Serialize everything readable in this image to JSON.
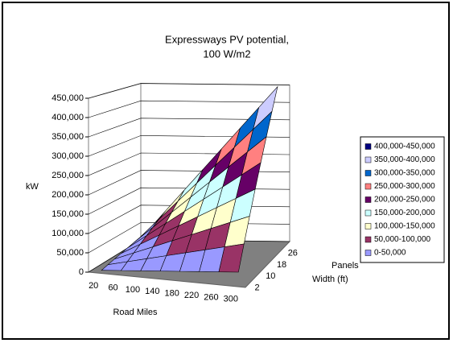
{
  "chart_data": {
    "type": "surface",
    "title": [
      "Expressways PV potential,",
      "100 W/m2"
    ],
    "y_label": "kW",
    "x_label": "Road Miles",
    "depth_label": [
      "Panels",
      "Width (ft)"
    ],
    "categories": [
      "20",
      "60",
      "100",
      "140",
      "180",
      "220",
      "260",
      "300"
    ],
    "depth_categories": [
      "2",
      null,
      "10",
      null,
      "18",
      null,
      "26",
      null
    ],
    "values": [
      [
        2000,
        6000,
        10000,
        14000,
        18000,
        22000,
        26000,
        30000
      ],
      [
        6000,
        18000,
        30000,
        42000,
        54000,
        66000,
        78000,
        90000
      ],
      [
        10000,
        30000,
        50000,
        70000,
        90000,
        110000,
        130000,
        150000
      ],
      [
        14000,
        42000,
        70000,
        98000,
        126000,
        154000,
        182000,
        210000
      ],
      [
        18000,
        54000,
        90000,
        126000,
        162000,
        198000,
        234000,
        270000
      ],
      [
        22000,
        66000,
        110000,
        154000,
        198000,
        242000,
        286000,
        330000
      ],
      [
        26000,
        78000,
        130000,
        182000,
        234000,
        286000,
        338000,
        390000
      ],
      [
        30000,
        90000,
        150000,
        210000,
        270000,
        330000,
        390000,
        450000
      ]
    ],
    "ylim": [
      0,
      450000
    ],
    "yticks": [
      {
        "value": 0,
        "label": "0"
      },
      {
        "value": 50000,
        "label": "50,000"
      },
      {
        "value": 100000,
        "label": "100,000"
      },
      {
        "value": 150000,
        "label": "150,000"
      },
      {
        "value": 200000,
        "label": "200,000"
      },
      {
        "value": 250000,
        "label": "250,000"
      },
      {
        "value": 300000,
        "label": "300,000"
      },
      {
        "value": 350000,
        "label": "350,000"
      },
      {
        "value": 400000,
        "label": "400,000"
      },
      {
        "value": 450000,
        "label": "450,000"
      }
    ],
    "grid": true,
    "legend": "right",
    "bands": [
      {
        "name": "0-50,000",
        "color": "#9999ff",
        "from": 0,
        "to": 50000
      },
      {
        "name": "50,000-100,000",
        "color": "#993366",
        "from": 50000,
        "to": 100000
      },
      {
        "name": "100,000-150,000",
        "color": "#ffffcc",
        "from": 100000,
        "to": 150000
      },
      {
        "name": "150,000-200,000",
        "color": "#ccffff",
        "from": 150000,
        "to": 200000
      },
      {
        "name": "200,000-250,000",
        "color": "#660066",
        "from": 200000,
        "to": 250000
      },
      {
        "name": "250,000-300,000",
        "color": "#ff8080",
        "from": 250000,
        "to": 300000
      },
      {
        "name": "300,000-350,000",
        "color": "#0066cc",
        "from": 300000,
        "to": 350000
      },
      {
        "name": "350,000-400,000",
        "color": "#ccccff",
        "from": 350000,
        "to": 400000
      },
      {
        "name": "400,000-450,000",
        "color": "#000080",
        "from": 400000,
        "to": 450000
      }
    ]
  }
}
